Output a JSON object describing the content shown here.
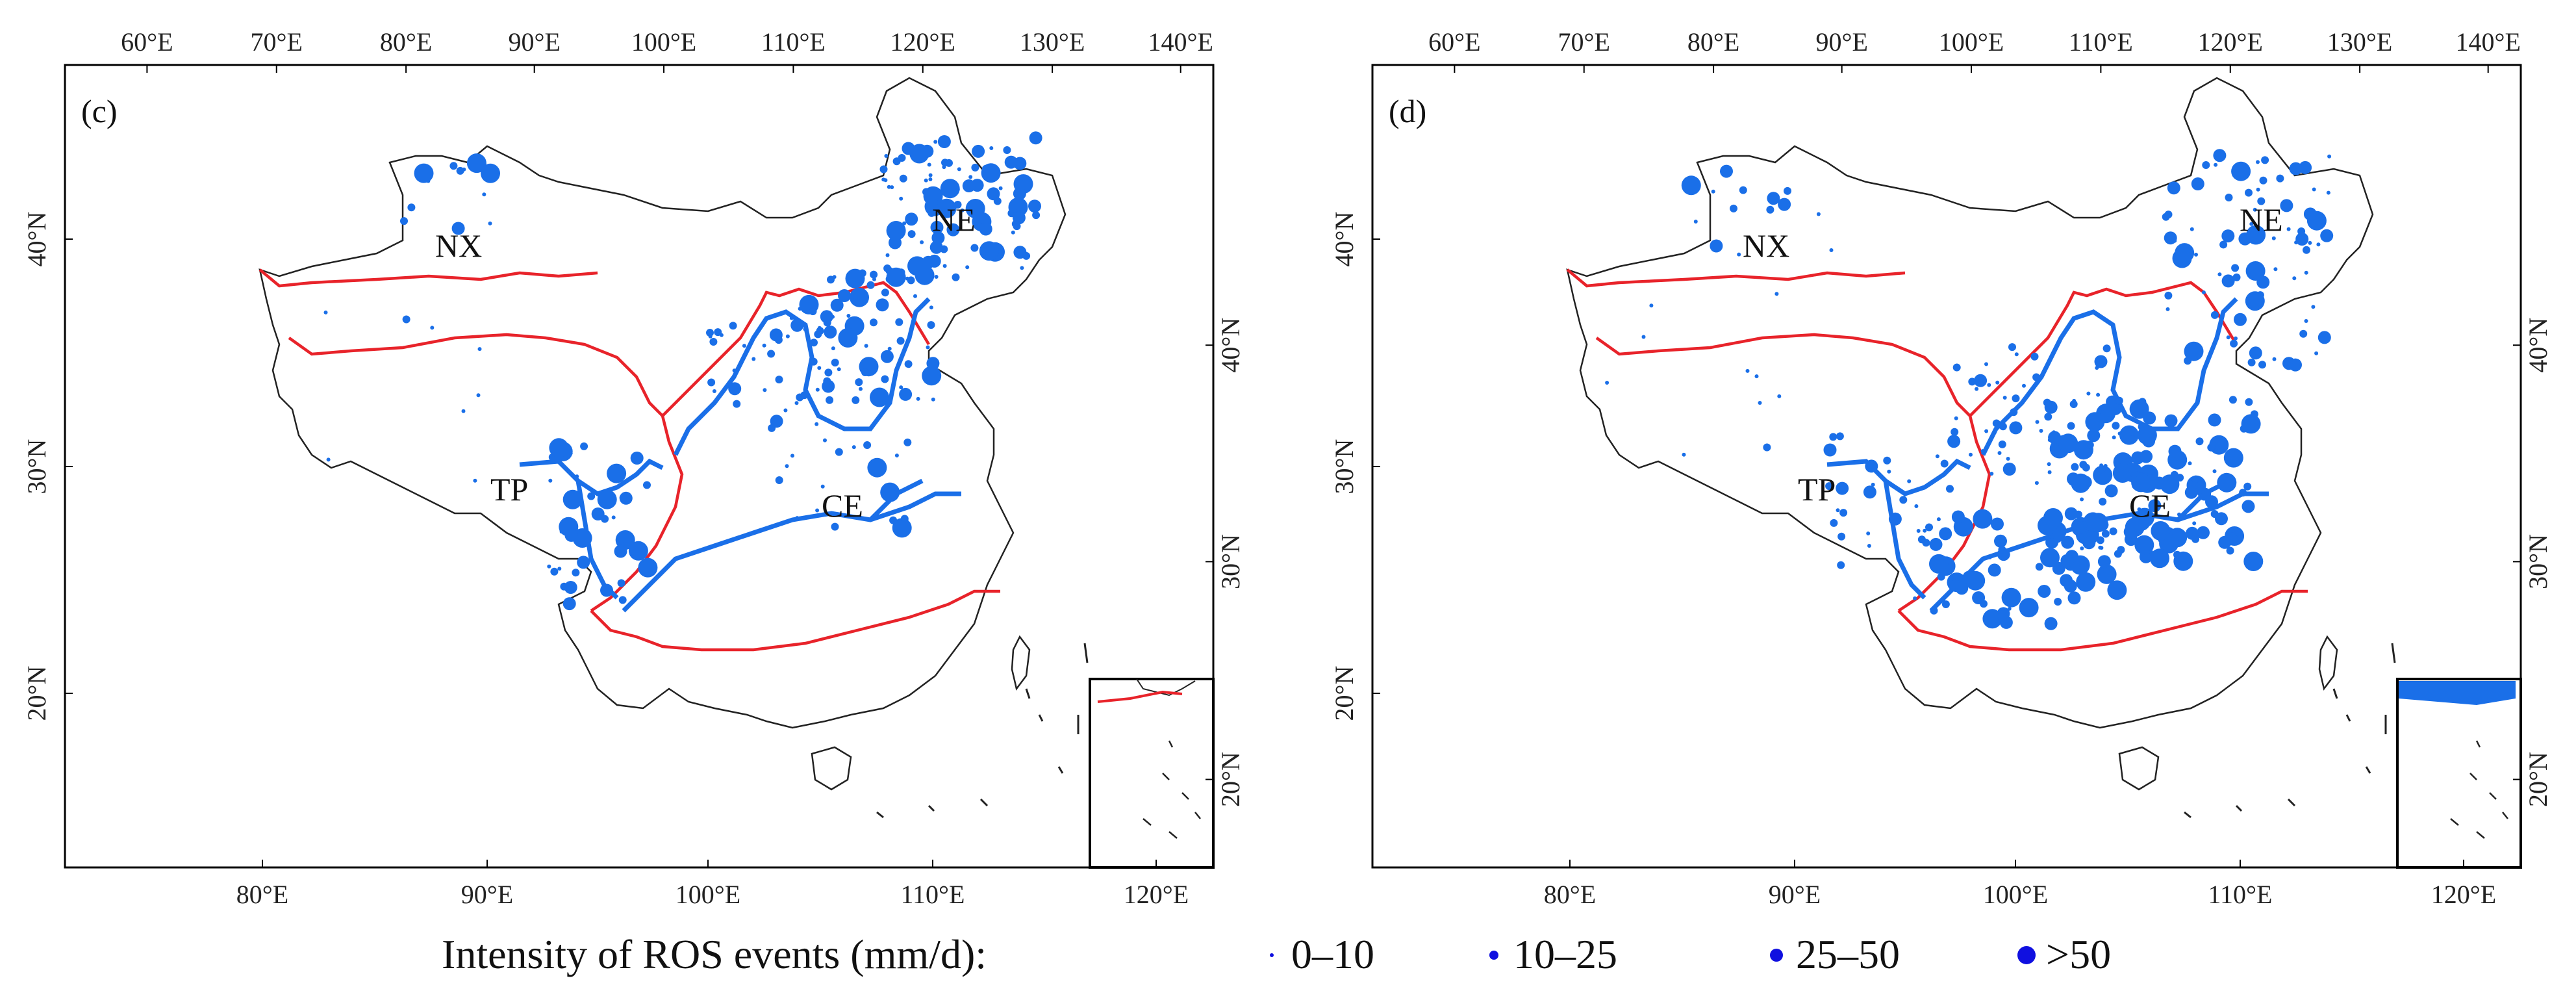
{
  "panels": [
    {
      "label": "(c)",
      "top_lon_labels": [
        "60°E",
        "70°E",
        "80°E",
        "90°E",
        "100°E",
        "110°E",
        "120°E",
        "130°E",
        "140°E"
      ],
      "bottom_lon_labels": [
        "80°E",
        "90°E",
        "100°E",
        "110°E",
        "120°E"
      ],
      "left_lat_labels": [
        "40°N",
        "30°N",
        "20°N"
      ],
      "right_lat_labels": [
        "40°N",
        "30°N",
        "20°N"
      ],
      "regions": [
        "NX",
        "NE",
        "TP",
        "CE"
      ]
    },
    {
      "label": "(d)",
      "top_lon_labels": [
        "60°E",
        "70°E",
        "80°E",
        "90°E",
        "100°E",
        "110°E",
        "120°E",
        "130°E",
        "140°E"
      ],
      "bottom_lon_labels": [
        "80°E",
        "90°E",
        "100°E",
        "110°E",
        "120°E"
      ],
      "left_lat_labels": [
        "40°N",
        "30°N",
        "20°N"
      ],
      "right_lat_labels": [
        "40°N",
        "30°N",
        "20°N"
      ],
      "regions": [
        "NX",
        "NE",
        "TP",
        "CE"
      ]
    }
  ],
  "legend": {
    "title": "Intensity of ROS events (mm/d):",
    "items": [
      {
        "label": "0–10",
        "size_class": 1
      },
      {
        "label": "10–25",
        "size_class": 2
      },
      {
        "label": "25–50",
        "size_class": 3
      },
      {
        "label": ">50",
        "size_class": 4
      }
    ]
  },
  "colors": {
    "station": "#1a6fe8",
    "legend_marker": "#1010e0",
    "zone_boundary": "#e8232a",
    "basin_boundary": "#1a6fe8",
    "coastline": "#222222"
  }
}
